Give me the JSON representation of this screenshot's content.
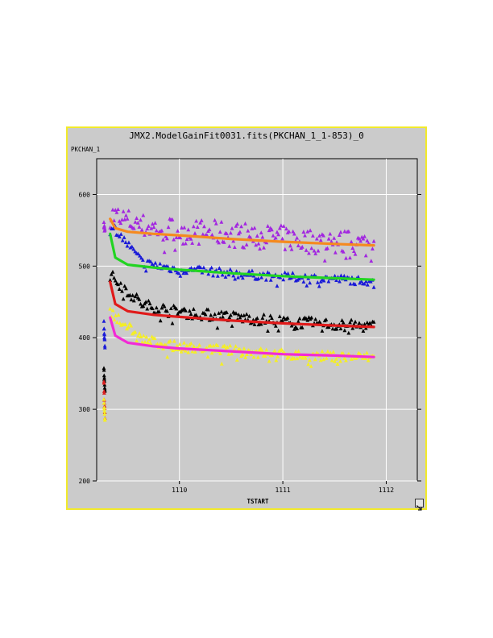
{
  "window": {
    "border_color": "#f2ea2a",
    "background": "#cbcbcb",
    "resize_icon": "resize-arrow-icon"
  },
  "chart_data": {
    "type": "scatter",
    "title": "JMX2.ModelGainFit0031.fits(PKCHAN_1_1-853)_0",
    "ylabel": "PKCHAN_1",
    "xlabel": "TSTART",
    "xlim": [
      1109.2,
      1112.3
    ],
    "ylim": [
      200,
      650
    ],
    "xticks": [
      1110,
      1111,
      1112
    ],
    "yticks": [
      200,
      300,
      400,
      500,
      600
    ],
    "grid": true,
    "grid_color": "#ffffff",
    "legend": "none",
    "series": [
      {
        "kind": "points",
        "color": "#a227e0",
        "start": 1109.33,
        "end": 1111.88,
        "levels": [
          572,
          556,
          550,
          547,
          544,
          540,
          536,
          533,
          530
        ],
        "scatter": 18,
        "dip": 20,
        "count": 200
      },
      {
        "kind": "points",
        "color": "#1a1ad8",
        "start": 1109.33,
        "end": 1111.88,
        "levels": [
          560,
          505,
          496,
          493,
          489,
          486,
          484,
          482,
          480
        ],
        "scatter": 6,
        "dip": 12,
        "count": 170
      },
      {
        "kind": "points",
        "color": "#000000",
        "start": 1109.33,
        "end": 1111.88,
        "levels": [
          488,
          446,
          437,
          432,
          428,
          424,
          421,
          418,
          416
        ],
        "scatter": 8,
        "dip": 14,
        "count": 200
      },
      {
        "kind": "points",
        "color": "#f4ee26",
        "start": 1109.33,
        "end": 1111.88,
        "levels": [
          437,
          398,
          388,
          385,
          381,
          378,
          375,
          374,
          373
        ],
        "scatter": 7,
        "dip": 14,
        "count": 190
      },
      {
        "kind": "points",
        "color": "#a227e0",
        "start": 1109.27,
        "end": 1109.28,
        "levels": [
          560,
          548
        ],
        "scatter": 5,
        "dip": 0,
        "count": 8
      },
      {
        "kind": "points",
        "color": "#1a1ad8",
        "start": 1109.27,
        "end": 1109.28,
        "levels": [
          420,
          385
        ],
        "scatter": 6,
        "dip": 0,
        "count": 10
      },
      {
        "kind": "points",
        "color": "#000000",
        "start": 1109.27,
        "end": 1109.28,
        "levels": [
          355,
          325
        ],
        "scatter": 4,
        "dip": 0,
        "count": 10
      },
      {
        "kind": "points",
        "color": "#d92020",
        "start": 1109.27,
        "end": 1109.28,
        "levels": [
          340,
          288
        ],
        "scatter": 4,
        "dip": 0,
        "count": 10
      },
      {
        "kind": "points",
        "color": "#f4ee26",
        "start": 1109.27,
        "end": 1109.28,
        "levels": [
          312,
          283
        ],
        "scatter": 3,
        "dip": 0,
        "count": 8
      },
      {
        "kind": "line",
        "color": "#f58a1f",
        "points": [
          [
            1109.33,
            566
          ],
          [
            1109.38,
            553
          ],
          [
            1109.5,
            548
          ],
          [
            1109.75,
            545
          ],
          [
            1110.0,
            543
          ],
          [
            1110.5,
            538
          ],
          [
            1111.0,
            534
          ],
          [
            1111.5,
            531
          ],
          [
            1111.88,
            529
          ]
        ]
      },
      {
        "kind": "line",
        "color": "#22d422",
        "points": [
          [
            1109.33,
            545
          ],
          [
            1109.38,
            512
          ],
          [
            1109.5,
            502
          ],
          [
            1109.75,
            498
          ],
          [
            1110.0,
            495
          ],
          [
            1110.5,
            490
          ],
          [
            1111.0,
            486
          ],
          [
            1111.5,
            483
          ],
          [
            1111.88,
            481
          ]
        ]
      },
      {
        "kind": "line",
        "color": "#e01a1a",
        "points": [
          [
            1109.33,
            478
          ],
          [
            1109.38,
            447
          ],
          [
            1109.5,
            437
          ],
          [
            1109.75,
            432
          ],
          [
            1110.0,
            429
          ],
          [
            1110.5,
            424
          ],
          [
            1111.0,
            420
          ],
          [
            1111.5,
            417
          ],
          [
            1111.88,
            415
          ]
        ]
      },
      {
        "kind": "line",
        "color": "#f22ad6",
        "points": [
          [
            1109.33,
            428
          ],
          [
            1109.38,
            403
          ],
          [
            1109.5,
            393
          ],
          [
            1109.75,
            388
          ],
          [
            1110.0,
            385
          ],
          [
            1110.5,
            381
          ],
          [
            1111.0,
            377
          ],
          [
            1111.5,
            375
          ],
          [
            1111.88,
            373
          ]
        ]
      }
    ]
  }
}
